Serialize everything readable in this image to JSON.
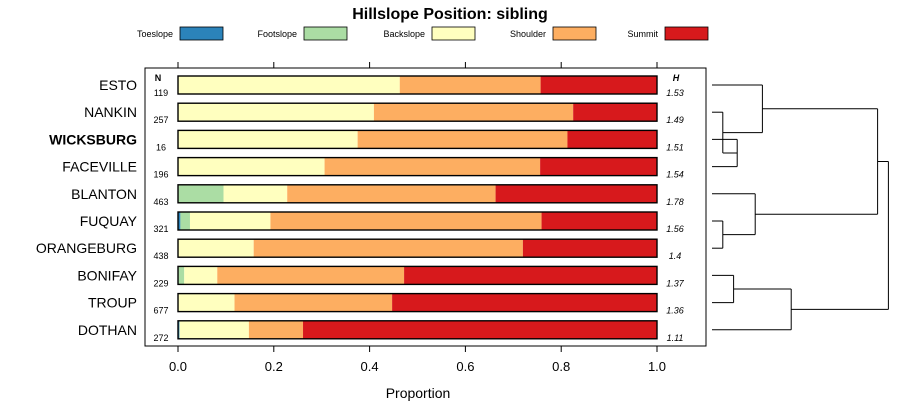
{
  "chart_data": {
    "type": "bar",
    "stacked": true,
    "orientation": "horizontal",
    "title": "Hillslope Position: sibling",
    "xlabel": "Proportion",
    "xlim": [
      0,
      1
    ],
    "xticks": [
      0.0,
      0.2,
      0.4,
      0.6,
      0.8,
      1.0
    ],
    "xtick_labels": [
      "0.0",
      "0.2",
      "0.4",
      "0.6",
      "0.8",
      "1.0"
    ],
    "legend_position": "top",
    "n_header": "N",
    "h_header": "H",
    "highlighted_category": "WICKSBURG",
    "categories": [
      "ESTO",
      "NANKIN",
      "WICKSBURG",
      "FACEVILLE",
      "BLANTON",
      "FUQUAY",
      "ORANGEBURG",
      "BONIFAY",
      "TROUP",
      "DOTHAN"
    ],
    "n": [
      "119",
      "257",
      "16",
      "196",
      "463",
      "321",
      "438",
      "229",
      "677",
      "272"
    ],
    "h": [
      "1.53",
      "1.49",
      "1.51",
      "1.54",
      "1.78",
      "1.56",
      "1.4",
      "1.37",
      "1.36",
      "1.11"
    ],
    "series": [
      {
        "name": "Toeslope",
        "color": "#2b83ba",
        "values": [
          0.0,
          0.0,
          0.0,
          0.0,
          0.0,
          0.005,
          0.0,
          0.0,
          0.0,
          0.003
        ]
      },
      {
        "name": "Footslope",
        "color": "#abdda4",
        "values": [
          0.0,
          0.0,
          0.0,
          0.0,
          0.095,
          0.02,
          0.0,
          0.013,
          0.0,
          0.0
        ]
      },
      {
        "name": "Backslope",
        "color": "#ffffbf",
        "values": [
          0.463,
          0.409,
          0.375,
          0.306,
          0.133,
          0.168,
          0.158,
          0.069,
          0.118,
          0.145
        ]
      },
      {
        "name": "Shoulder",
        "color": "#fdae61",
        "values": [
          0.294,
          0.416,
          0.438,
          0.45,
          0.435,
          0.566,
          0.562,
          0.39,
          0.329,
          0.113
        ]
      },
      {
        "name": "Summit",
        "color": "#d7191c",
        "values": [
          0.243,
          0.175,
          0.187,
          0.244,
          0.337,
          0.241,
          0.28,
          0.528,
          0.553,
          0.739
        ]
      }
    ],
    "dendrogram": {
      "leaves": [
        "ESTO",
        "NANKIN",
        "WICKSBURG",
        "FACEVILLE",
        "BLANTON",
        "FUQUAY",
        "ORANGEBURG",
        "BONIFAY",
        "TROUP",
        "DOTHAN"
      ],
      "merges": [
        {
          "a": "WICKSBURG",
          "b": "FACEVILLE",
          "height": 0.14
        },
        {
          "a": "NANKIN",
          "b": 0,
          "height": 0.06
        },
        {
          "a": "ESTO",
          "b": 1,
          "height": 0.28
        },
        {
          "a": "FUQUAY",
          "b": "ORANGEBURG",
          "height": 0.06
        },
        {
          "a": "BLANTON",
          "b": 3,
          "height": 0.24
        },
        {
          "a": 2,
          "b": 4,
          "height": 0.92
        },
        {
          "a": "BONIFAY",
          "b": "TROUP",
          "height": 0.12
        },
        {
          "a": 6,
          "b": "DOTHAN",
          "height": 0.44
        },
        {
          "a": 5,
          "b": 7,
          "height": 0.98
        }
      ]
    }
  }
}
